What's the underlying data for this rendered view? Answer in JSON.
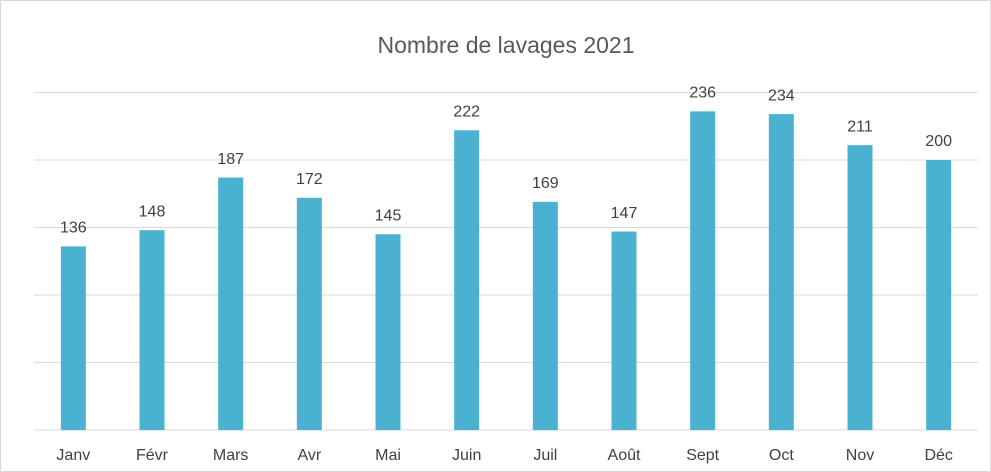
{
  "chart_data": {
    "type": "bar",
    "title": "Nombre de lavages 2021",
    "categories": [
      "Janv",
      "Févr",
      "Mars",
      "Avr",
      "Mai",
      "Juin",
      "Juil",
      "Août",
      "Sept",
      "Oct",
      "Nov",
      "Déc"
    ],
    "values": [
      136,
      148,
      187,
      172,
      145,
      222,
      169,
      147,
      236,
      234,
      211,
      200
    ],
    "color": "#4bb1d0",
    "ylim": [
      0,
      250
    ],
    "yticks": [
      0,
      50,
      100,
      150,
      200,
      250
    ],
    "grid": true
  }
}
